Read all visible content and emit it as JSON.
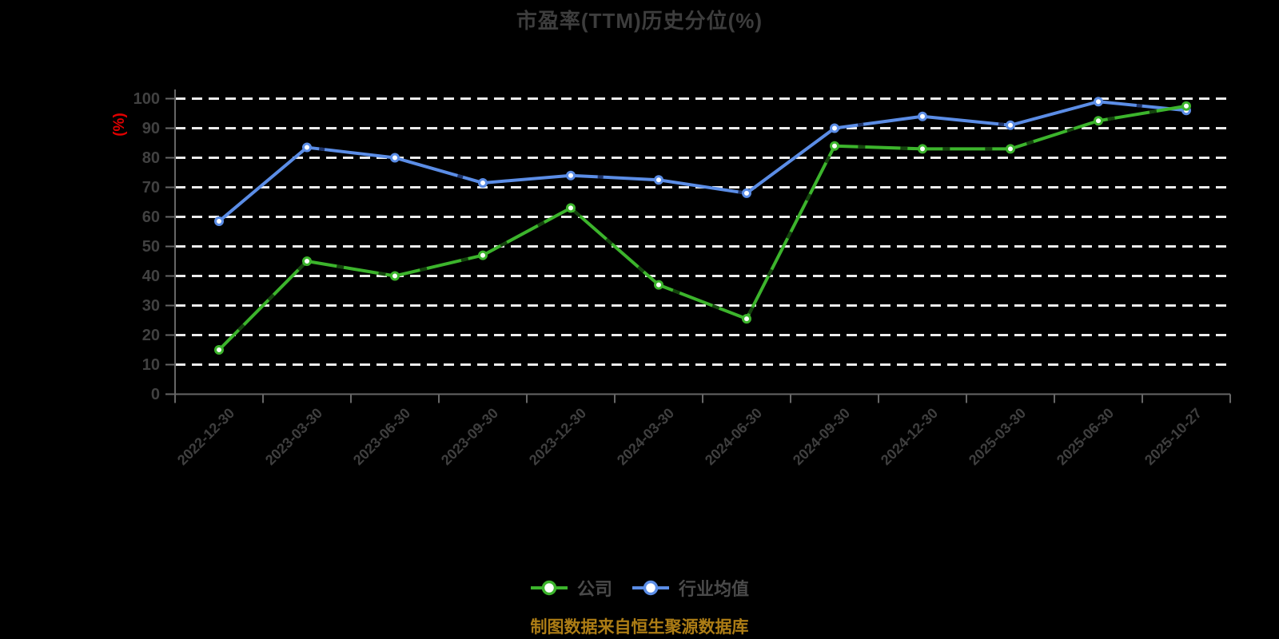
{
  "chart_data": {
    "type": "line",
    "title": "市盈率(TTM)历史分位(%)",
    "ylabel": "(%)",
    "xlabel": "",
    "ylim": [
      0,
      100
    ],
    "yticks": [
      0,
      10,
      20,
      30,
      40,
      50,
      60,
      70,
      80,
      90,
      100
    ],
    "grid": true,
    "legend_position": "bottom",
    "categories": [
      "2022-12-30",
      "2023-03-30",
      "2023-06-30",
      "2023-09-30",
      "2023-12-30",
      "2024-03-30",
      "2024-06-30",
      "2024-09-30",
      "2024-12-30",
      "2025-03-30",
      "2025-06-30",
      "2025-10-27"
    ],
    "series": [
      {
        "name": "公司",
        "color": "#3cb42c",
        "values": [
          15,
          45,
          40,
          47,
          63,
          37,
          25.5,
          84,
          83,
          83,
          92.5,
          97.5
        ]
      },
      {
        "name": "行业均值",
        "color": "#5b8de6",
        "values": [
          58.5,
          83.5,
          80,
          71.5,
          74,
          72.5,
          68,
          90,
          94,
          91,
          99,
          96
        ]
      }
    ],
    "source_note": "制图数据来自恒生聚源数据库",
    "colors": {
      "background": "#000000",
      "grid_line": "#ececec",
      "axis_line": "#666666",
      "tick_label": "#414141",
      "title": "#3d3d3d",
      "y_unit_label": "#e00000",
      "legend_text": "#4a4a4a",
      "source_note": "#ad7d15",
      "marker_fill": "#ffffff"
    }
  }
}
